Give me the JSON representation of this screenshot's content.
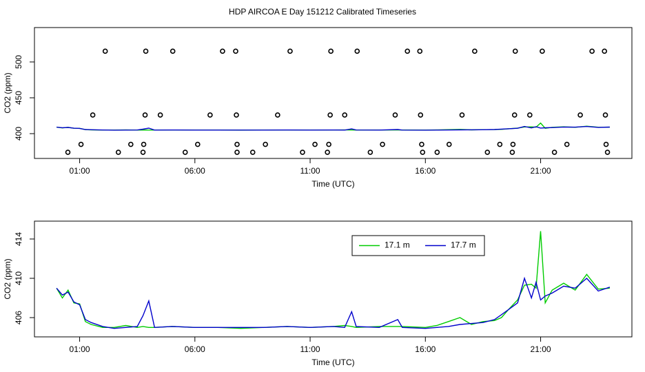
{
  "chart_data": [
    {
      "type": "scatter",
      "title": "HDP AIRCOA E  Day 151212  Calibrated Timeseries",
      "xlabel": "Time (UTC)",
      "ylabel": "CO2 (ppm)",
      "xlim": [
        -0.96,
        24.96
      ],
      "xticks": [
        {
          "value": 1,
          "label": "01:00"
        },
        {
          "value": 6,
          "label": "06:00"
        },
        {
          "value": 11,
          "label": "11:00"
        },
        {
          "value": 16,
          "label": "16:00"
        },
        {
          "value": 21,
          "label": "21:00"
        }
      ],
      "ylim": [
        365.4,
        548
      ],
      "yticks": [
        400,
        450,
        500
      ],
      "series": [
        {
          "type": "scatter",
          "color": "#000000",
          "x": [
            2.11,
            3.87,
            5.04,
            7.2,
            7.77,
            10.13,
            11.9,
            13.04,
            15.22,
            15.76,
            18.14,
            19.9,
            21.07,
            23.23,
            23.77,
            1.57,
            3.84,
            4.5,
            6.66,
            7.8,
            9.59,
            11.87,
            12.5,
            14.69,
            15.79,
            17.59,
            19.87,
            20.53,
            22.72,
            23.81,
            1.06,
            3.22,
            3.78,
            6.12,
            7.83,
            9.06,
            11.21,
            11.81,
            14.14,
            15.84,
            17.03,
            19.23,
            19.8,
            22.14,
            23.84,
            0.49,
            2.68,
            3.75,
            5.58,
            7.83,
            8.51,
            10.67,
            11.75,
            13.61,
            15.88,
            16.51,
            18.69,
            19.77,
            21.6,
            23.9
          ],
          "values": [
            515,
            515,
            515,
            515,
            515,
            515,
            515,
            515,
            515,
            515,
            515,
            515,
            515,
            515,
            515,
            426,
            426,
            426,
            426,
            426,
            426,
            426,
            426,
            426,
            426,
            426,
            426,
            426,
            426,
            426,
            385,
            385,
            385,
            385,
            385,
            385,
            385,
            385,
            385,
            385,
            385,
            385,
            385,
            385,
            385,
            374,
            374,
            374,
            374,
            374,
            374,
            374,
            374,
            374,
            374,
            374,
            374,
            374,
            374,
            374
          ]
        },
        {
          "type": "line",
          "color": "#00cc00",
          "x": [
            0,
            0.25,
            0.5,
            0.75,
            1,
            1.25,
            1.5,
            2,
            2.5,
            3,
            3.5,
            3.75,
            4,
            4.25,
            5,
            6,
            7,
            8,
            9,
            10,
            11,
            12,
            12.5,
            12.8,
            13,
            14,
            14.8,
            15,
            16,
            16.5,
            17,
            17.5,
            18,
            18.5,
            19,
            19.3,
            19.6,
            20,
            20.3,
            20.6,
            20.8,
            21,
            21.2,
            21.5,
            22,
            22.5,
            23,
            23.5,
            24
          ],
          "values": [
            409.0,
            408.0,
            408.8,
            407.5,
            407.4,
            405.6,
            405.3,
            405.0,
            405.0,
            405.2,
            405.0,
            405.1,
            405.0,
            405.0,
            405.1,
            405.0,
            405.0,
            404.9,
            405.0,
            405.1,
            405.0,
            405.1,
            405.2,
            405.1,
            405.0,
            405.1,
            405.1,
            405.1,
            405.0,
            405.2,
            405.6,
            406.0,
            405.3,
            405.6,
            405.7,
            406.0,
            406.8,
            407.8,
            409.3,
            409.4,
            409.0,
            414.8,
            407.5,
            408.8,
            409.5,
            408.8,
            410.4,
            408.9,
            409.0
          ]
        },
        {
          "type": "line",
          "color": "#0000cc",
          "x": [
            0,
            0.25,
            0.5,
            0.75,
            1,
            1.25,
            1.5,
            2,
            2.5,
            3,
            3.5,
            3.75,
            4,
            4.25,
            5,
            6,
            7,
            8,
            9,
            10,
            11,
            12,
            12.5,
            12.8,
            13,
            14,
            14.8,
            15,
            16,
            16.5,
            17,
            17.5,
            18,
            18.5,
            19,
            19.3,
            19.6,
            20,
            20.3,
            20.6,
            20.8,
            21,
            21.2,
            21.5,
            22,
            22.5,
            23,
            23.5,
            24
          ],
          "values": [
            409.0,
            408.3,
            408.6,
            407.6,
            407.3,
            405.8,
            405.5,
            405.1,
            404.9,
            405.0,
            405.1,
            406.2,
            407.7,
            405.0,
            405.1,
            405.0,
            405.0,
            405.0,
            405.0,
            405.1,
            405.0,
            405.1,
            405.0,
            406.6,
            405.1,
            405.0,
            405.8,
            405.0,
            404.9,
            405.0,
            405.1,
            405.3,
            405.4,
            405.5,
            405.8,
            406.3,
            406.8,
            407.5,
            410.0,
            408.0,
            409.6,
            407.8,
            408.2,
            408.5,
            409.2,
            409.0,
            410.0,
            408.7,
            409.1
          ]
        }
      ]
    },
    {
      "type": "line",
      "xlabel": "Time (UTC)",
      "ylabel": "CO2 (ppm)",
      "legend": "top",
      "xlim": [
        -0.96,
        24.96
      ],
      "xticks": [
        {
          "value": 1,
          "label": "01:00"
        },
        {
          "value": 6,
          "label": "06:00"
        },
        {
          "value": 11,
          "label": "11:00"
        },
        {
          "value": 16,
          "label": "16:00"
        },
        {
          "value": 21,
          "label": "21:00"
        }
      ],
      "ylim": [
        404.04,
        415.82
      ],
      "yticks": [
        406,
        410,
        414
      ],
      "series": [
        {
          "type": "line",
          "name": "17.1 m",
          "color": "#00cc00",
          "x": [
            0,
            0.25,
            0.5,
            0.75,
            1,
            1.25,
            1.5,
            2,
            2.5,
            3,
            3.5,
            3.75,
            4,
            4.25,
            5,
            6,
            7,
            8,
            9,
            10,
            11,
            12,
            12.5,
            12.8,
            13,
            14,
            14.8,
            15,
            16,
            16.5,
            17,
            17.5,
            18,
            18.5,
            19,
            19.3,
            19.6,
            20,
            20.3,
            20.6,
            20.8,
            21,
            21.2,
            21.5,
            22,
            22.5,
            23,
            23.5,
            24
          ],
          "values": [
            409.0,
            408.0,
            408.8,
            407.5,
            407.4,
            405.6,
            405.3,
            405.0,
            405.0,
            405.2,
            405.0,
            405.1,
            405.0,
            405.0,
            405.1,
            405.0,
            405.0,
            404.9,
            405.0,
            405.1,
            405.0,
            405.1,
            405.2,
            405.1,
            405.0,
            405.1,
            405.1,
            405.1,
            405.0,
            405.2,
            405.6,
            406.0,
            405.3,
            405.6,
            405.7,
            406.0,
            406.8,
            407.8,
            409.3,
            409.4,
            409.0,
            414.8,
            407.5,
            408.8,
            409.5,
            408.8,
            410.4,
            408.9,
            409.0
          ]
        },
        {
          "type": "line",
          "name": "17.7 m",
          "color": "#0000cc",
          "x": [
            0,
            0.25,
            0.5,
            0.75,
            1,
            1.25,
            1.5,
            2,
            2.5,
            3,
            3.5,
            3.75,
            4,
            4.25,
            5,
            6,
            7,
            8,
            9,
            10,
            11,
            12,
            12.5,
            12.8,
            13,
            14,
            14.8,
            15,
            16,
            16.5,
            17,
            17.5,
            18,
            18.5,
            19,
            19.3,
            19.6,
            20,
            20.3,
            20.6,
            20.8,
            21,
            21.2,
            21.5,
            22,
            22.5,
            23,
            23.5,
            24
          ],
          "values": [
            409.0,
            408.3,
            408.6,
            407.6,
            407.3,
            405.8,
            405.5,
            405.1,
            404.9,
            405.0,
            405.1,
            406.2,
            407.7,
            405.0,
            405.1,
            405.0,
            405.0,
            405.0,
            405.0,
            405.1,
            405.0,
            405.1,
            405.0,
            406.6,
            405.1,
            405.0,
            405.8,
            405.0,
            404.9,
            405.0,
            405.1,
            405.3,
            405.4,
            405.5,
            405.8,
            406.3,
            406.8,
            407.5,
            410.0,
            408.0,
            409.6,
            407.8,
            408.2,
            408.5,
            409.2,
            409.0,
            410.0,
            408.7,
            409.1
          ]
        }
      ]
    }
  ]
}
